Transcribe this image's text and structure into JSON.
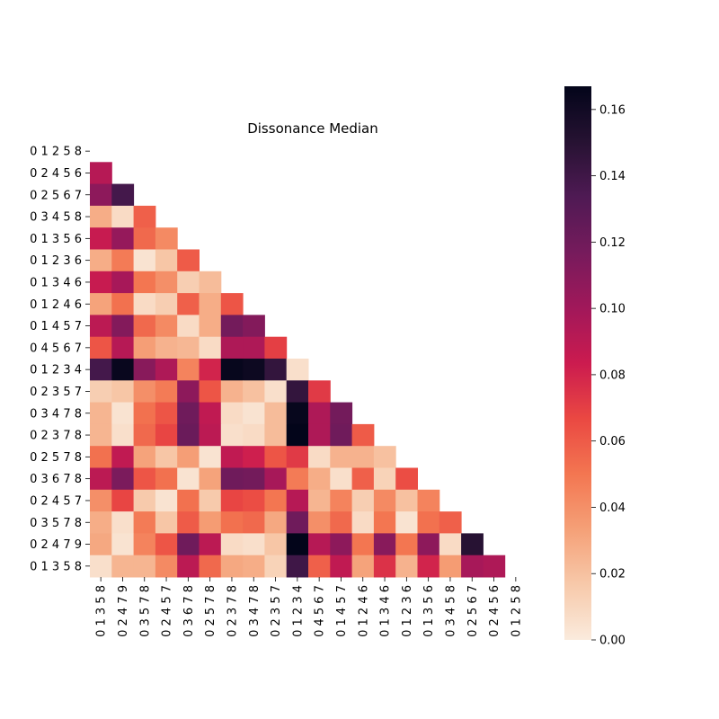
{
  "chart_data": {
    "type": "heatmap",
    "title": "Dissonance Median",
    "row_labels": [
      "0 1 2 5 8",
      "0 2 4 5 6",
      "0 2 5 6 7",
      "0 3 4 5 8",
      "0 1 3 5 6",
      "0 1 2 3 6",
      "0 1 3 4 6",
      "0 1 2 4 6",
      "0 1 4 5 7",
      "0 4 5 6 7",
      "0 1 2 3 4",
      "0 2 3 5 7",
      "0 3 4 7 8",
      "0 2 3 7 8",
      "0 2 5 7 8",
      "0 3 6 7 8",
      "0 2 4 5 7",
      "0 3 5 7 8",
      "0 2 4 7 9",
      "0 1 3 5 8"
    ],
    "col_labels": [
      "0 1 3 5 8",
      "0 2 4 7 9",
      "0 3 5 7 8",
      "0 2 4 5 7",
      "0 3 6 7 8",
      "0 2 5 7 8",
      "0 2 3 7 8",
      "0 3 4 7 8",
      "0 2 3 5 7",
      "0 1 2 3 4",
      "0 4 5 6 7",
      "0 1 4 5 7",
      "0 1 2 4 6",
      "0 1 3 4 6",
      "0 1 2 3 6",
      "0 1 3 5 6",
      "0 3 4 5 8",
      "0 2 5 6 7",
      "0 2 4 5 6",
      "0 1 2 5 8"
    ],
    "mask": "upper triangle including anti-diagonal (row + col >= 19)",
    "values": [
      [],
      [
        0.092
      ],
      [
        0.108,
        0.138
      ],
      [
        0.028,
        0.008,
        0.058
      ],
      [
        0.085,
        0.105,
        0.055,
        0.042
      ],
      [
        0.028,
        0.048,
        0.004,
        0.018,
        0.06
      ],
      [
        0.085,
        0.098,
        0.05,
        0.04,
        0.014,
        0.022
      ],
      [
        0.032,
        0.052,
        0.008,
        0.014,
        0.058,
        0.028,
        0.062
      ],
      [
        0.09,
        0.112,
        0.055,
        0.042,
        0.008,
        0.028,
        0.118,
        0.112
      ],
      [
        0.062,
        0.092,
        0.034,
        0.026,
        0.024,
        0.008,
        0.095,
        0.095,
        0.07
      ],
      [
        0.138,
        0.164,
        0.11,
        0.095,
        0.045,
        0.08,
        0.165,
        0.162,
        0.145,
        0.006
      ],
      [
        0.014,
        0.018,
        0.04,
        0.048,
        0.108,
        0.062,
        0.026,
        0.02,
        0.006,
        0.145,
        0.072
      ],
      [
        0.025,
        0.004,
        0.052,
        0.062,
        0.12,
        0.088,
        0.008,
        0.004,
        0.022,
        0.165,
        0.095,
        0.118
      ],
      [
        0.025,
        0.006,
        0.055,
        0.068,
        0.122,
        0.09,
        0.006,
        0.008,
        0.022,
        0.168,
        0.095,
        0.12,
        0.06
      ],
      [
        0.052,
        0.088,
        0.032,
        0.018,
        0.034,
        0.004,
        0.088,
        0.082,
        0.062,
        0.072,
        0.008,
        0.026,
        0.026,
        0.02
      ],
      [
        0.09,
        0.115,
        0.062,
        0.052,
        0.004,
        0.032,
        0.12,
        0.118,
        0.098,
        0.048,
        0.028,
        0.006,
        0.058,
        0.012,
        0.065
      ],
      [
        0.04,
        0.068,
        0.016,
        0.004,
        0.052,
        0.016,
        0.068,
        0.065,
        0.05,
        0.092,
        0.025,
        0.045,
        0.014,
        0.042,
        0.02,
        0.045
      ],
      [
        0.028,
        0.006,
        0.048,
        0.018,
        0.06,
        0.035,
        0.052,
        0.055,
        0.03,
        0.12,
        0.04,
        0.055,
        0.008,
        0.05,
        0.004,
        0.052,
        0.058
      ],
      [
        0.03,
        0.004,
        0.045,
        0.062,
        0.12,
        0.09,
        0.008,
        0.006,
        0.018,
        0.168,
        0.092,
        0.108,
        0.05,
        0.11,
        0.05,
        0.108,
        0.008,
        0.15
      ],
      [
        0.006,
        0.025,
        0.025,
        0.042,
        0.09,
        0.055,
        0.03,
        0.028,
        0.012,
        0.14,
        0.058,
        0.088,
        0.032,
        0.075,
        0.026,
        0.08,
        0.035,
        0.098,
        0.095
      ]
    ],
    "colorbar": {
      "min": 0.0,
      "max": 0.167,
      "ticks": [
        0.0,
        0.02,
        0.04,
        0.06,
        0.08,
        0.1,
        0.12,
        0.14,
        0.16
      ]
    },
    "colormap": "rocket_r",
    "colors": {
      "low": "#faebdd",
      "high": "#03051a"
    }
  }
}
